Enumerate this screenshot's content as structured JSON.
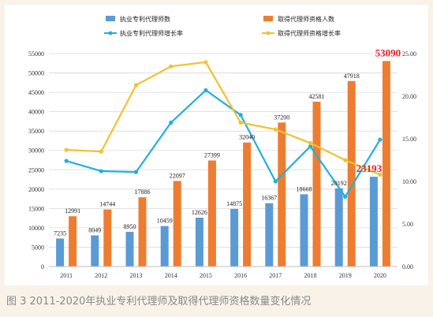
{
  "caption": "图 3 2011-2020年执业专利代理师及取得代理师资格数量变化情况",
  "colors": {
    "practicing_bar": "#5b9bd5",
    "qualified_bar": "#ed7d31",
    "practicing_line": "#1fb0e0",
    "qualified_line": "#f2c12e",
    "highlight": "#e8202a"
  },
  "chart_data": {
    "type": "bar",
    "categories": [
      "2011",
      "2012",
      "2013",
      "2014",
      "2015",
      "2016",
      "2017",
      "2018",
      "2019",
      "2020"
    ],
    "series": [
      {
        "name": "执业专利代理师数",
        "kind": "bar",
        "axis": "left",
        "values": [
          7235,
          8049,
          8950,
          10459,
          12626,
          14875,
          16367,
          18668,
          20192,
          23193
        ],
        "labels": [
          "7235",
          "8049",
          "8950",
          "10459",
          "12626",
          "14875",
          "16367",
          "18668",
          "20192",
          "23193"
        ]
      },
      {
        "name": "取得代理师资格人数",
        "kind": "bar",
        "axis": "left",
        "values": [
          12991,
          14744,
          17886,
          22097,
          27399,
          32040,
          37200,
          42581,
          47918,
          53090
        ],
        "labels": [
          "12991",
          "14744",
          "17886",
          "22097",
          "27399",
          "32040",
          "37200",
          "42581",
          "47918",
          "53090"
        ]
      },
      {
        "name": "执业专利代理师增长率",
        "kind": "line",
        "axis": "right",
        "values": [
          12.4,
          11.2,
          11.1,
          16.9,
          20.7,
          17.8,
          10.0,
          14.1,
          8.2,
          14.9
        ]
      },
      {
        "name": "取得代理师资格增长率",
        "kind": "line",
        "axis": "right",
        "values": [
          13.7,
          13.5,
          21.3,
          23.5,
          24.0,
          16.9,
          16.1,
          14.5,
          12.5,
          10.8
        ]
      }
    ],
    "highlighted_labels": [
      "53090",
      "23193"
    ],
    "y_left": {
      "min": 0,
      "max": 55000,
      "step": 5000,
      "ticks": [
        "0",
        "5000",
        "10000",
        "15000",
        "20000",
        "25000",
        "30000",
        "35000",
        "40000",
        "45000",
        "50000",
        "55000"
      ]
    },
    "y_right": {
      "min": 0,
      "max": 25,
      "step": 5,
      "ticks": [
        "0.00",
        "5.00",
        "10.00",
        "15.00",
        "20.00",
        "25.00"
      ]
    },
    "legend_position": "top",
    "grid": true
  }
}
